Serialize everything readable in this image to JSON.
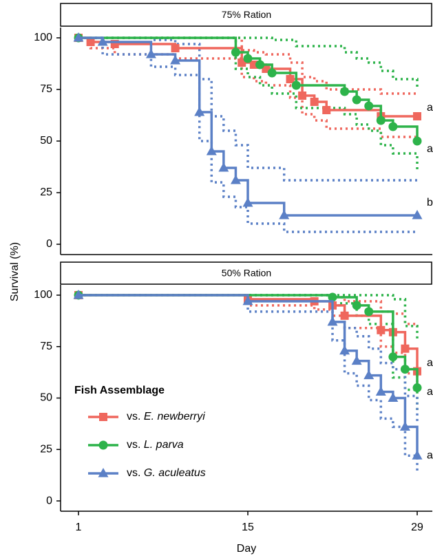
{
  "ylabel": "Survival (%)",
  "xlabel": "Day",
  "chart_data": [
    {
      "type": "step",
      "title": "75% Ration",
      "xlim": [
        -0.48,
        30.25
      ],
      "ylim": [
        -5,
        105
      ],
      "yticks": [
        0,
        25,
        50,
        75,
        100
      ],
      "annotations": [
        "a",
        "a",
        "b"
      ],
      "series": [
        {
          "color": "#ef675d",
          "marker": "square",
          "x": [
            1,
            2,
            4,
            9,
            14.5,
            15.5,
            16.5,
            18.5,
            19.5,
            20.5,
            21.5,
            26,
            29
          ],
          "values": [
            100,
            98,
            97,
            95,
            88,
            87,
            85,
            80,
            72,
            69,
            65,
            62,
            62
          ],
          "lower": [
            100,
            95,
            92,
            90,
            81,
            79,
            77,
            71,
            63,
            60,
            56,
            52,
            50
          ],
          "upper": [
            100,
            100,
            100,
            100,
            94,
            93,
            92,
            88,
            81,
            79,
            75,
            73,
            73
          ]
        },
        {
          "color": "#2db34a",
          "marker": "circle",
          "x": [
            1,
            14,
            15,
            16,
            17,
            19,
            23,
            24,
            25,
            26,
            27,
            29
          ],
          "values": [
            100,
            93,
            90,
            87,
            83,
            77,
            74,
            70,
            67,
            60,
            57,
            50
          ],
          "lower": [
            100,
            85,
            81,
            77,
            73,
            66,
            63,
            58,
            55,
            48,
            44,
            35
          ],
          "upper": [
            100,
            100,
            100,
            100,
            99,
            96,
            93,
            90,
            88,
            84,
            80,
            76
          ]
        },
        {
          "color": "#5b80c6",
          "marker": "triangle",
          "x": [
            1,
            3,
            7,
            9,
            11,
            12,
            13,
            14,
            15,
            18,
            29
          ],
          "values": [
            100,
            98,
            92,
            89,
            64,
            45,
            37,
            31,
            20,
            14,
            14
          ],
          "lower": [
            100,
            92,
            86,
            82,
            50,
            30,
            23,
            18,
            10,
            6,
            6
          ],
          "upper": [
            100,
            100,
            99,
            97,
            80,
            62,
            55,
            48,
            37,
            31,
            31
          ]
        }
      ]
    },
    {
      "type": "step",
      "title": "50% Ration",
      "xlim": [
        -0.48,
        30.25
      ],
      "ylim": [
        -5,
        105
      ],
      "yticks": [
        0,
        25,
        50,
        75,
        100
      ],
      "xticks": [
        1,
        15,
        29
      ],
      "annotations": [
        "a",
        "a",
        "a"
      ],
      "legend": "lower left",
      "legend_title": "Fish Assemblage",
      "series": [
        {
          "name": "vs. E. newberryi",
          "color": "#ef675d",
          "marker": "square",
          "x": [
            1,
            15,
            20.5,
            22,
            23,
            26,
            27,
            28,
            29
          ],
          "values": [
            100,
            98,
            97,
            95,
            90,
            83,
            82,
            74,
            63
          ],
          "lower": [
            100,
            95,
            93,
            90,
            84,
            75,
            72,
            62,
            53
          ],
          "upper": [
            100,
            100,
            100,
            99,
            97,
            92,
            91,
            86,
            85
          ]
        },
        {
          "name": "vs. L. parva",
          "color": "#2db34a",
          "marker": "circle",
          "x": [
            1,
            22,
            24,
            25,
            27,
            28,
            29
          ],
          "values": [
            100,
            99,
            95,
            92,
            70,
            64,
            55
          ],
          "lower": [
            100,
            96,
            90,
            86,
            60,
            54,
            44
          ],
          "upper": [
            100,
            100,
            100,
            100,
            98,
            85,
            78
          ]
        },
        {
          "name": "vs. G. aculeatus",
          "color": "#5b80c6",
          "marker": "triangle",
          "x": [
            1,
            15,
            22,
            23,
            24,
            25,
            26,
            27,
            28,
            29
          ],
          "values": [
            100,
            97,
            87,
            73,
            68,
            61,
            53,
            50,
            36,
            22
          ],
          "lower": [
            100,
            92,
            78,
            62,
            56,
            49,
            40,
            36,
            22,
            14
          ],
          "upper": [
            100,
            100,
            95,
            84,
            80,
            74,
            67,
            64,
            51,
            38
          ]
        }
      ]
    }
  ]
}
